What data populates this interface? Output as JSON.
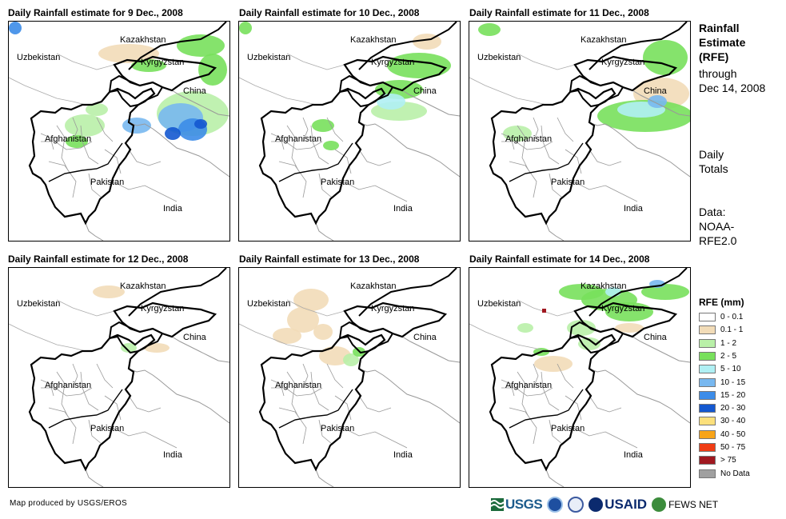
{
  "panels": [
    {
      "title": "Daily Rainfall estimate for 9 Dec., 2008",
      "date": "9 Dec., 2008"
    },
    {
      "title": "Daily Rainfall estimate for 10 Dec., 2008",
      "date": "10 Dec., 2008"
    },
    {
      "title": "Daily Rainfall estimate for 11 Dec., 2008",
      "date": "11 Dec., 2008"
    },
    {
      "title": "Daily Rainfall estimate for 12 Dec., 2008",
      "date": "12 Dec., 2008"
    },
    {
      "title": "Daily Rainfall estimate for 13 Dec., 2008",
      "date": "13 Dec., 2008"
    },
    {
      "title": "Daily Rainfall estimate for 14 Dec., 2008",
      "date": "14 Dec., 2008"
    }
  ],
  "map_labels": {
    "kazakhstan": "Kazakhstan",
    "uzbekistan": "Uzbekistan",
    "kyrgyzstan": "Kyrgyzstan",
    "china": "China",
    "afghanistan": "Afghanistan",
    "pakistan": "Pakistan",
    "india": "India"
  },
  "side_text": {
    "title_line1": "Rainfall",
    "title_line2": "Estimate",
    "title_line3": "(RFE)",
    "through_line1": "through",
    "through_line2": "Dec 14, 2008",
    "daily_line1": "Daily",
    "daily_line2": "Totals",
    "data_line1": "Data:",
    "data_line2": "NOAA-",
    "data_line3": "RFE2.0"
  },
  "legend": {
    "title": "RFE (mm)",
    "items": [
      {
        "label": "0 - 0.1",
        "color": "#ffffff"
      },
      {
        "label": "0.1 - 1",
        "color": "#f2dcb8"
      },
      {
        "label": "1 - 2",
        "color": "#b9f0a8"
      },
      {
        "label": "2 - 5",
        "color": "#78e05c"
      },
      {
        "label": "5 - 10",
        "color": "#b0f0f4"
      },
      {
        "label": "10 - 15",
        "color": "#78b8f0"
      },
      {
        "label": "15 - 20",
        "color": "#3c8ce8"
      },
      {
        "label": "20 - 30",
        "color": "#1458d0"
      },
      {
        "label": "30 - 40",
        "color": "#fce07c"
      },
      {
        "label": "40 - 50",
        "color": "#f8a418"
      },
      {
        "label": "50 - 75",
        "color": "#f03c14"
      },
      {
        "label": "> 75",
        "color": "#a01820"
      },
      {
        "label": "No Data",
        "color": "#a0a0a0"
      }
    ]
  },
  "footer": {
    "credit": "Map produced by USGS/EROS",
    "logo_usgs": "USGS",
    "logo_usaid": "USAID",
    "logo_fews": "FEWS NET"
  }
}
